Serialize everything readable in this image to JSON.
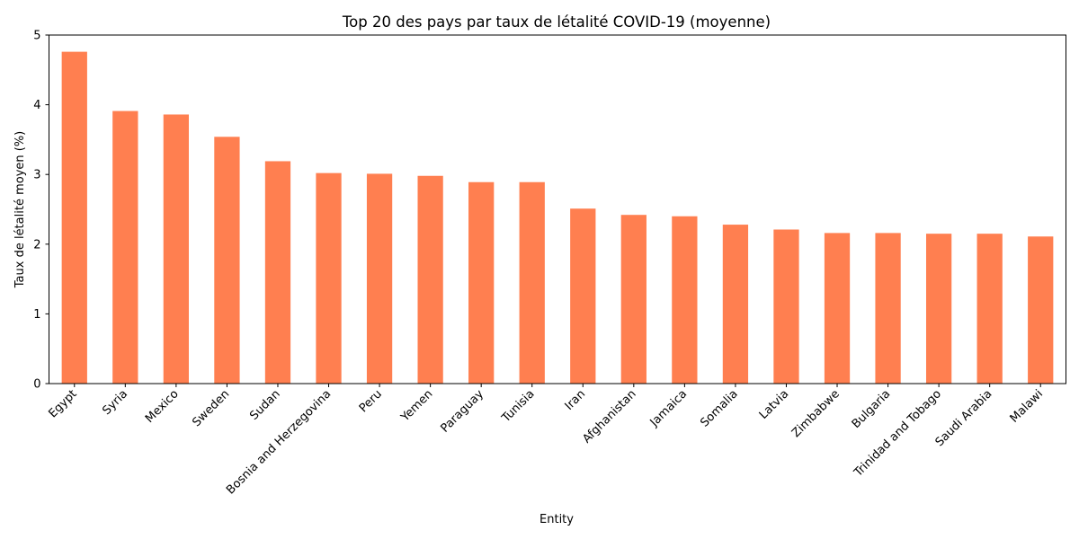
{
  "chart_data": {
    "type": "bar",
    "title": "Top 20 des pays par taux de létalité COVID-19 (moyenne)",
    "xlabel": "Entity",
    "ylabel": "Taux de létalité moyen (%)",
    "ylim": [
      0,
      5
    ],
    "yticks": [
      "0",
      "1",
      "2",
      "3",
      "4",
      "5"
    ],
    "grid": false,
    "legend": "none",
    "bar_color": "#ff7f50",
    "categories": [
      "Egypt",
      "Syria",
      "Mexico",
      "Sweden",
      "Sudan",
      "Bosnia and Herzegovina",
      "Peru",
      "Yemen",
      "Paraguay",
      "Tunisia",
      "Iran",
      "Afghanistan",
      "Jamaica",
      "Somalia",
      "Latvia",
      "Zimbabwe",
      "Bulgaria",
      "Trinidad and Tobago",
      "Saudi Arabia",
      "Malawi"
    ],
    "values": [
      4.76,
      3.91,
      3.86,
      3.54,
      3.19,
      3.02,
      3.01,
      2.98,
      2.89,
      2.89,
      2.51,
      2.42,
      2.4,
      2.28,
      2.21,
      2.16,
      2.16,
      2.15,
      2.15,
      2.11
    ]
  }
}
